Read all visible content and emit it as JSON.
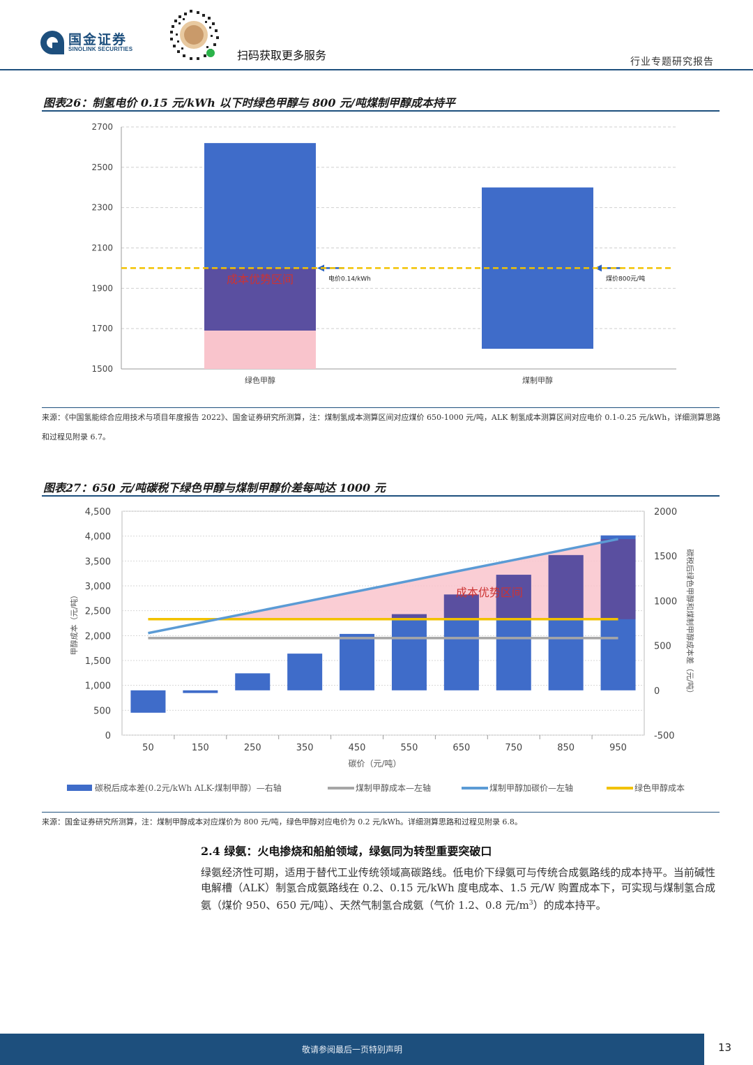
{
  "header": {
    "logo_cn": "国金证券",
    "logo_en": "SINOLINK SECURITIES",
    "scan_text": "扫码获取更多服务",
    "report_type": "行业专题研究报告",
    "brand_color": "#1d4f7d"
  },
  "fig26": {
    "title": "图表26：制氢电价 0.15 元/kWh 以下时绿色甲醇与 800 元/吨煤制甲醇成本持平",
    "source": "来源：《中国氢能综合应用技术与项目年度报告 2022》、国金证券研究所测算，注：煤制氢成本测算区间对应煤价 650-1000 元/吨，ALK 制氢成本测算区间对应电价 0.1-0.25 元/kWh，详细测算思路和过程见附录 6.7。",
    "advantage_label": "成本优势区间",
    "arrow_label_1": "电价0.14/kWh",
    "arrow_label_2": "煤价800元/吨"
  },
  "fig27": {
    "title": "图表27：650 元/吨碳税下绿色甲醇与煤制甲醇价差每吨达 1000 元",
    "source": "来源：国金证券研究所测算，注：煤制甲醇成本对应煤价为 800 元/吨，绿色甲醇对应电价为 0.2 元/kWh。详细测算思路和过程见附录 6.8。",
    "advantage_label": "成本优势区间",
    "legend": [
      "碳税后成本差(0.2元/kWh ALK-煤制甲醇）—右轴",
      "煤制甲醇成本—左轴",
      "煤制甲醇加碳价—左轴",
      "绿色甲醇成本"
    ]
  },
  "section": {
    "heading": "2.4 绿氨：火电掺烧和船舶领域，绿氨同为转型重要突破口",
    "paragraph_a": "绿氨经济性可期，适用于替代工业传统领域高碳路线。低电价下绿氨可与传统合成氨路线的成本持平。当前碱性电解槽（ALK）制氢合成氨路线在 0.2、0.15 元/kWh 度电成本、1.5 元/W 购置成本下，可实现与煤制氢合成氨（煤价 950、650 元/吨）、天然气制氢合成氨（气价 1.2、0.8 元/m",
    "paragraph_sup": "3",
    "paragraph_b": "）的成本持平。"
  },
  "footer": {
    "text": "敬请参阅最后一页特别声明",
    "page": "13"
  },
  "chart_data": [
    {
      "type": "bar",
      "title": "图表26：制氢电价 0.15 元/kWh 以下时绿色甲醇与 800 元/吨煤制甲醇成本持平",
      "categories": [
        "绿色甲醇",
        "煤制甲醇"
      ],
      "floating_bars": [
        {
          "category": "绿色甲醇",
          "low": 1690,
          "high": 2620
        },
        {
          "category": "煤制甲醇",
          "low": 1600,
          "high": 2400
        }
      ],
      "reference_line": {
        "value": 2000,
        "style": "dashed",
        "color": "#f2c200"
      },
      "advantage_range": {
        "category": "绿色甲醇",
        "low": 1690,
        "high": 2000
      },
      "annotations": [
        "电价0.14/kWh",
        "煤价800元/吨"
      ],
      "ylim": [
        1500,
        2700
      ],
      "yticks": [
        1500,
        1700,
        1900,
        2100,
        2300,
        2500,
        2700
      ],
      "grid": true,
      "colors": {
        "bar": "#3f6cc9",
        "overlap": "#5a4fa0",
        "pink": "#f9c4cc",
        "arrow": "#2b62c0",
        "label": "#cc3333"
      }
    },
    {
      "type": "bar",
      "title": "图表27：650 元/吨碳税下绿色甲醇与煤制甲醇价差每吨达 1000 元",
      "xlabel": "碳价（元/吨）",
      "ylabel": "甲醇成本（元/吨）",
      "ylabel_right": "碳税后绿色甲醇和煤制甲醇成本差（元/吨）",
      "categories": [
        "50",
        "150",
        "250",
        "350",
        "450",
        "550",
        "650",
        "750",
        "850",
        "950"
      ],
      "series": [
        {
          "name": "碳税后成本差(0.2元/kWh ALK-煤制甲醇）—右轴",
          "kind": "bar",
          "axis": "right",
          "values": [
            -250,
            -30,
            190,
            410,
            630,
            850,
            1070,
            1290,
            1510,
            1730
          ]
        },
        {
          "name": "煤制甲醇成本—左轴",
          "kind": "line",
          "axis": "left",
          "values": [
            1950,
            1950,
            1950,
            1950,
            1950,
            1950,
            1950,
            1950,
            1950,
            1950
          ]
        },
        {
          "name": "煤制甲醇加碳价—左轴",
          "kind": "line",
          "axis": "left",
          "values": [
            2050,
            2260,
            2470,
            2680,
            2890,
            3100,
            3310,
            3520,
            3730,
            3940
          ]
        },
        {
          "name": "绿色甲醇成本",
          "kind": "line",
          "axis": "left",
          "values": [
            2330,
            2330,
            2330,
            2330,
            2330,
            2330,
            2330,
            2330,
            2330,
            2330
          ]
        }
      ],
      "ylim_left": [
        0,
        4500
      ],
      "yticks_left": [
        "0",
        "500",
        "1,000",
        "1,500",
        "2,000",
        "2,500",
        "3,000",
        "3,500",
        "4,000",
        "4,500"
      ],
      "ylim_right": [
        -500,
        2000
      ],
      "yticks_right": [
        "-500",
        "0",
        "500",
        "1000",
        "1500",
        "2000"
      ],
      "grid": true,
      "legend_position": "bottom",
      "colors": {
        "bar": "#3f6cc9",
        "overlap": "#5a4fa0",
        "coal": "#a6a6a6",
        "carbon": "#5b9bd5",
        "green": "#f2c200",
        "pink": "#f9c4cc"
      }
    }
  ]
}
